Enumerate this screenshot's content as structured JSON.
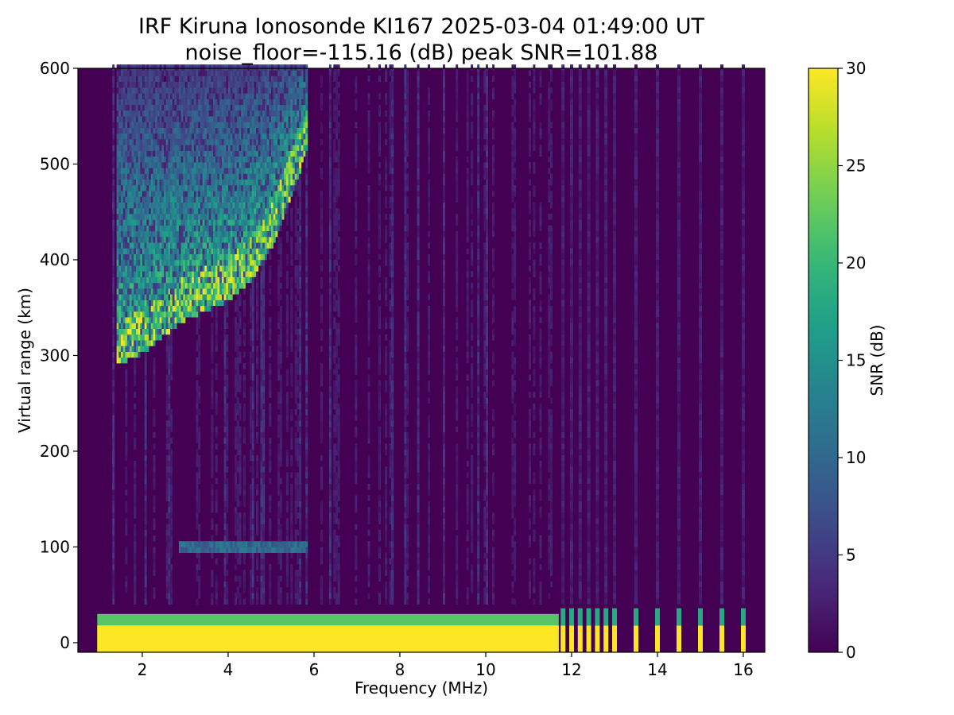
{
  "chart_data": {
    "type": "heatmap",
    "title": "IRF Kiruna Ionosonde KI167 2025-03-04 01:49:00  UT",
    "subtitle": "noise_floor=-115.16 (dB) peak SNR=101.88",
    "xlabel": "Frequency (MHz)",
    "ylabel": "Virtual range (km)",
    "xlim": [
      0.5,
      16.5
    ],
    "ylim": [
      -10,
      600
    ],
    "xticks": [
      2,
      4,
      6,
      8,
      10,
      12,
      14,
      16
    ],
    "yticks": [
      0,
      100,
      200,
      300,
      400,
      500,
      600
    ],
    "colorbar": {
      "label": "SNR (dB)",
      "range": [
        0,
        30
      ],
      "ticks": [
        0,
        5,
        10,
        15,
        20,
        25,
        30
      ],
      "colormap": "viridis"
    },
    "background_color": "#440154",
    "sweep_start_mhz": 0.95,
    "features": {
      "ground_clutter": {
        "freq_mhz": [
          0.95,
          11.7
        ],
        "range_km": [
          -10,
          30
        ],
        "snr_db": 30
      },
      "f_layer_trace": [
        {
          "freq_mhz": 1.4,
          "min_range_km": 288
        },
        {
          "freq_mhz": 2.0,
          "min_range_km": 300
        },
        {
          "freq_mhz": 2.5,
          "min_range_km": 318
        },
        {
          "freq_mhz": 3.0,
          "min_range_km": 335
        },
        {
          "freq_mhz": 3.5,
          "min_range_km": 345
        },
        {
          "freq_mhz": 4.0,
          "min_range_km": 355
        },
        {
          "freq_mhz": 4.5,
          "min_range_km": 375
        },
        {
          "freq_mhz": 5.0,
          "min_range_km": 410
        },
        {
          "freq_mhz": 5.5,
          "min_range_km": 470
        },
        {
          "freq_mhz": 5.8,
          "min_range_km": 510
        }
      ],
      "e_layer_echo": {
        "freq_mhz": [
          2.8,
          5.8
        ],
        "range_km": 97,
        "snr_db": 12
      },
      "sparse_pulses_freq_mhz": [
        11.8,
        12.0,
        12.2,
        12.4,
        12.6,
        12.8,
        13.0,
        13.5,
        14.0,
        14.5,
        15.0,
        15.5,
        16.0
      ]
    }
  }
}
